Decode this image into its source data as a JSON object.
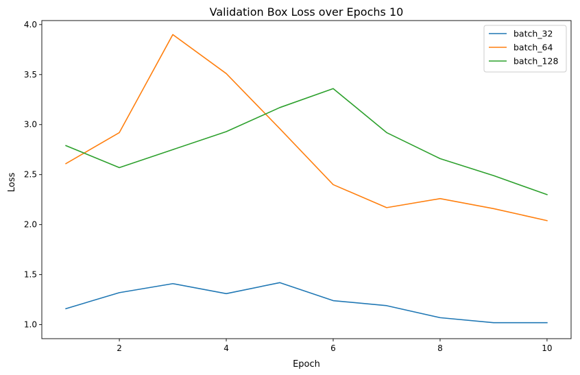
{
  "chart_data": {
    "type": "line",
    "title": "Validation Box Loss over Epochs 10",
    "xlabel": "Epoch",
    "ylabel": "Loss",
    "xlim": [
      0.55,
      10.45
    ],
    "ylim": [
      0.86,
      4.04
    ],
    "xticks": [
      2,
      4,
      6,
      8,
      10
    ],
    "yticks": [
      1.0,
      1.5,
      2.0,
      2.5,
      3.0,
      3.5,
      4.0
    ],
    "x": [
      1,
      2,
      3,
      4,
      5,
      6,
      7,
      8,
      9,
      10
    ],
    "grid": false,
    "legend_position": "top-right",
    "series": [
      {
        "name": "batch_32",
        "color": "#1f77b4",
        "values": [
          1.16,
          1.32,
          1.41,
          1.31,
          1.42,
          1.24,
          1.19,
          1.07,
          1.02,
          1.02
        ]
      },
      {
        "name": "batch_64",
        "color": "#ff7f0e",
        "values": [
          2.61,
          2.92,
          3.9,
          3.51,
          2.96,
          2.4,
          2.17,
          2.26,
          2.16,
          2.04
        ]
      },
      {
        "name": "batch_128",
        "color": "#2ca02c",
        "values": [
          2.79,
          2.57,
          2.75,
          2.93,
          3.17,
          3.36,
          2.92,
          2.66,
          2.49,
          2.3
        ]
      }
    ]
  }
}
